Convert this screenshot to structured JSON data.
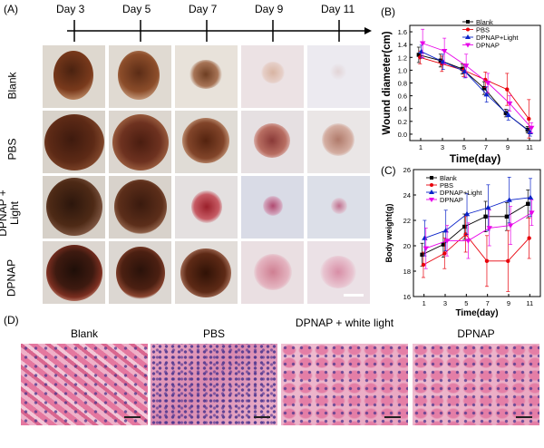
{
  "panelA": {
    "label": "(A)",
    "days": [
      "Day 3",
      "Day 5",
      "Day 7",
      "Day 9",
      "Day 11"
    ],
    "groups": [
      "Blank",
      "PBS",
      "DPNAP + Light",
      "DPNAP"
    ]
  },
  "panelD": {
    "label": "(D)",
    "titles": [
      "Blank",
      "PBS",
      "DPNAP + white light",
      "DPNAP"
    ]
  },
  "chart_data": [
    {
      "panel": "(B)",
      "type": "line",
      "xlabel": "Time(day)",
      "ylabel": "Wound diameter(cm)",
      "x": [
        1,
        3,
        5,
        7,
        9,
        11
      ],
      "xlim": [
        0,
        12
      ],
      "ylim": [
        -0.1,
        1.7
      ],
      "yticks": [
        0.0,
        0.2,
        0.4,
        0.6,
        0.8,
        1.0,
        1.2,
        1.4,
        1.6
      ],
      "ytick_labels": [
        "0.0",
        "0.2",
        "0.4",
        "0.6",
        "0.8",
        "1.0",
        "1.2",
        "1.4",
        "1.6"
      ],
      "xticks": [
        1,
        3,
        5,
        7,
        9,
        11
      ],
      "legend_position": "top-right",
      "series": [
        {
          "name": "Blank",
          "color": "#000000",
          "marker": "square",
          "values": [
            1.24,
            1.15,
            1.02,
            0.72,
            0.33,
            0.07
          ],
          "err": [
            0.12,
            0.1,
            0.08,
            0.1,
            0.06,
            0.05
          ]
        },
        {
          "name": "PBS",
          "color": "#e8000b",
          "marker": "circle",
          "values": [
            1.2,
            1.1,
            1.0,
            0.85,
            0.7,
            0.24
          ],
          "err": [
            0.1,
            0.12,
            0.1,
            0.12,
            0.25,
            0.3
          ]
        },
        {
          "name": "DPNAP+Light",
          "color": "#0a23c9",
          "marker": "triangle-up",
          "values": [
            1.29,
            1.13,
            0.98,
            0.62,
            0.3,
            0.03
          ],
          "err": [
            0.1,
            0.12,
            0.1,
            0.12,
            0.08,
            0.06
          ]
        },
        {
          "name": "DPNAP",
          "color": "#e800e8",
          "marker": "triangle-down",
          "values": [
            1.42,
            1.3,
            1.07,
            0.8,
            0.48,
            0.1
          ],
          "err": [
            0.22,
            0.2,
            0.18,
            0.15,
            0.12,
            0.08
          ]
        }
      ]
    },
    {
      "panel": "(C)",
      "type": "line",
      "xlabel": "Time(day)",
      "ylabel": "Body weight(g)",
      "x": [
        1,
        3,
        5,
        7,
        9,
        11
      ],
      "xlim": [
        0,
        12
      ],
      "ylim": [
        16,
        26
      ],
      "yticks": [
        16,
        18,
        20,
        22,
        24,
        26
      ],
      "ytick_labels": [
        "16",
        "18",
        "20",
        "22",
        "24",
        "26"
      ],
      "xticks": [
        1,
        3,
        5,
        7,
        9,
        11
      ],
      "legend_position": "top-left",
      "series": [
        {
          "name": "Blank",
          "color": "#000000",
          "marker": "square",
          "values": [
            19.3,
            20.1,
            21.5,
            22.3,
            22.3,
            23.3
          ],
          "err": [
            0.9,
            1.0,
            1.0,
            1.2,
            1.1,
            1.1
          ]
        },
        {
          "name": "PBS",
          "color": "#e8000b",
          "marker": "circle",
          "values": [
            18.5,
            19.4,
            20.9,
            18.8,
            18.8,
            20.6
          ],
          "err": [
            1.0,
            1.2,
            1.4,
            2.0,
            2.4,
            1.6
          ]
        },
        {
          "name": "DPNAP+Light",
          "color": "#0a23c9",
          "marker": "triangle-up",
          "values": [
            20.6,
            21.2,
            22.5,
            23.0,
            23.6,
            23.8
          ],
          "err": [
            1.4,
            1.6,
            1.6,
            1.8,
            1.8,
            1.5
          ]
        },
        {
          "name": "DPNAP",
          "color": "#e800e8",
          "marker": "triangle-down",
          "values": [
            19.8,
            20.4,
            20.4,
            21.4,
            21.6,
            22.6
          ],
          "err": [
            1.6,
            1.2,
            1.4,
            1.4,
            1.5,
            1.0
          ]
        }
      ]
    }
  ]
}
